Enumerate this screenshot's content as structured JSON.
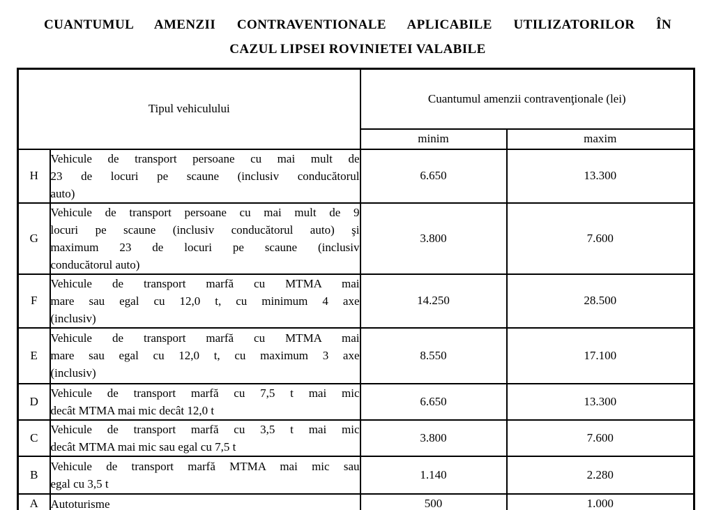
{
  "title": {
    "line1": "CUANTUMUL AMENZII CONTRAVENTIONALE APLICABILE UTILIZATORILOR ÎN",
    "line2": "CAZUL LIPSEI ROVINIETEI VALABILE"
  },
  "table": {
    "header": {
      "vehicle_type": "Tipul vehiculului",
      "fine_title": "Cuantumul amenzii contravenţionale (lei)",
      "min_label": "minim",
      "max_label": "maxim"
    },
    "rows": [
      {
        "category": "H",
        "description_lines": [
          "Vehicule de transport persoane cu mai mult de",
          "23 de locuri pe scaune (inclusiv conducătorul",
          "auto)"
        ],
        "min": "6.650",
        "max": "13.300"
      },
      {
        "category": "G",
        "description_lines": [
          "Vehicule de transport persoane cu mai mult de 9",
          "locuri pe scaune (inclusiv conducătorul auto) şi",
          "maximum 23 de locuri pe scaune (inclusiv",
          "conducătorul auto)"
        ],
        "min": "3.800",
        "max": "7.600"
      },
      {
        "category": "F",
        "description_lines": [
          "Vehicule de transport marfă cu MTMA mai",
          "mare sau egal cu 12,0 t, cu minimum 4 axe",
          "(inclusiv)"
        ],
        "min": "14.250",
        "max": "28.500"
      },
      {
        "category": "E",
        "description_lines": [
          "Vehicule de transport marfă cu MTMA mai",
          "mare sau egal cu 12,0 t, cu maximum 3 axe",
          "(inclusiv)"
        ],
        "min": "8.550",
        "max": "17.100"
      },
      {
        "category": "D",
        "description_lines": [
          "Vehicule de transport marfă cu 7,5 t mai mic",
          "decât MTMA mai mic decât 12,0 t"
        ],
        "min": "6.650",
        "max": "13.300"
      },
      {
        "category": "C",
        "description_lines": [
          "Vehicule de transport marfă cu 3,5 t mai mic",
          "decât MTMA mai mic sau egal cu 7,5 t"
        ],
        "min": "3.800",
        "max": "7.600"
      },
      {
        "category": "B",
        "description_lines": [
          "Vehicule de transport marfă MTMA mai mic sau",
          "egal cu 3,5 t"
        ],
        "min": "1.140",
        "max": "2.280"
      },
      {
        "category": "A",
        "description_lines": [
          "Autoturisme"
        ],
        "min": "500",
        "max": "1.000"
      }
    ]
  }
}
